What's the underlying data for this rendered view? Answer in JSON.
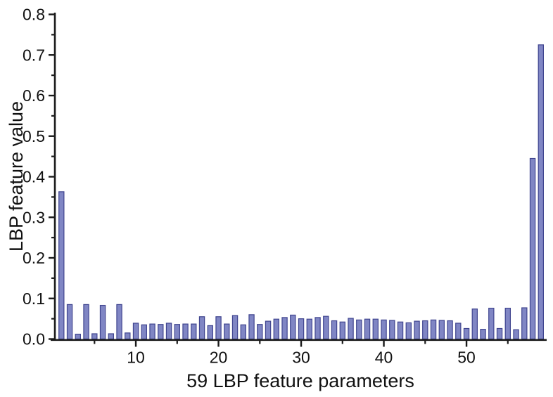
{
  "chart_data": {
    "type": "bar",
    "title": "",
    "xlabel": "59 LBP feature parameters",
    "ylabel": "LBP feature value",
    "num_bars": 59,
    "x": [
      1,
      2,
      3,
      4,
      5,
      6,
      7,
      8,
      9,
      10,
      11,
      12,
      13,
      14,
      15,
      16,
      17,
      18,
      19,
      20,
      21,
      22,
      23,
      24,
      25,
      26,
      27,
      28,
      29,
      30,
      31,
      32,
      33,
      34,
      35,
      36,
      37,
      38,
      39,
      40,
      41,
      42,
      43,
      44,
      45,
      46,
      47,
      48,
      49,
      50,
      51,
      52,
      53,
      54,
      55,
      56,
      57,
      58,
      59
    ],
    "values": [
      0.363,
      0.085,
      0.012,
      0.085,
      0.013,
      0.083,
      0.013,
      0.085,
      0.015,
      0.039,
      0.035,
      0.037,
      0.036,
      0.039,
      0.036,
      0.037,
      0.037,
      0.055,
      0.033,
      0.055,
      0.037,
      0.058,
      0.035,
      0.06,
      0.036,
      0.044,
      0.049,
      0.053,
      0.059,
      0.05,
      0.049,
      0.053,
      0.056,
      0.045,
      0.042,
      0.051,
      0.047,
      0.049,
      0.049,
      0.047,
      0.046,
      0.042,
      0.04,
      0.044,
      0.045,
      0.047,
      0.046,
      0.045,
      0.039,
      0.026,
      0.074,
      0.024,
      0.076,
      0.026,
      0.076,
      0.023,
      0.077,
      0.445,
      0.725
    ],
    "ylim": [
      0.0,
      0.8
    ],
    "ytick_major_step": 0.1,
    "ytick_minor_step": 0.05,
    "ytick_labels": [
      "0.0",
      "0.1",
      "0.2",
      "0.3",
      "0.4",
      "0.5",
      "0.6",
      "0.7",
      "0.8"
    ],
    "xtick_major": [
      10,
      20,
      30,
      40,
      50
    ],
    "xtick_minor": [
      5,
      15,
      25,
      35,
      45,
      55
    ],
    "grid": false,
    "legend": false,
    "bar_fill_color": "#8086c4",
    "bar_edge_color": "#40458f",
    "axis_color": "#1a1a1a",
    "text_color": "#111111",
    "background_color": "#ffffff"
  }
}
